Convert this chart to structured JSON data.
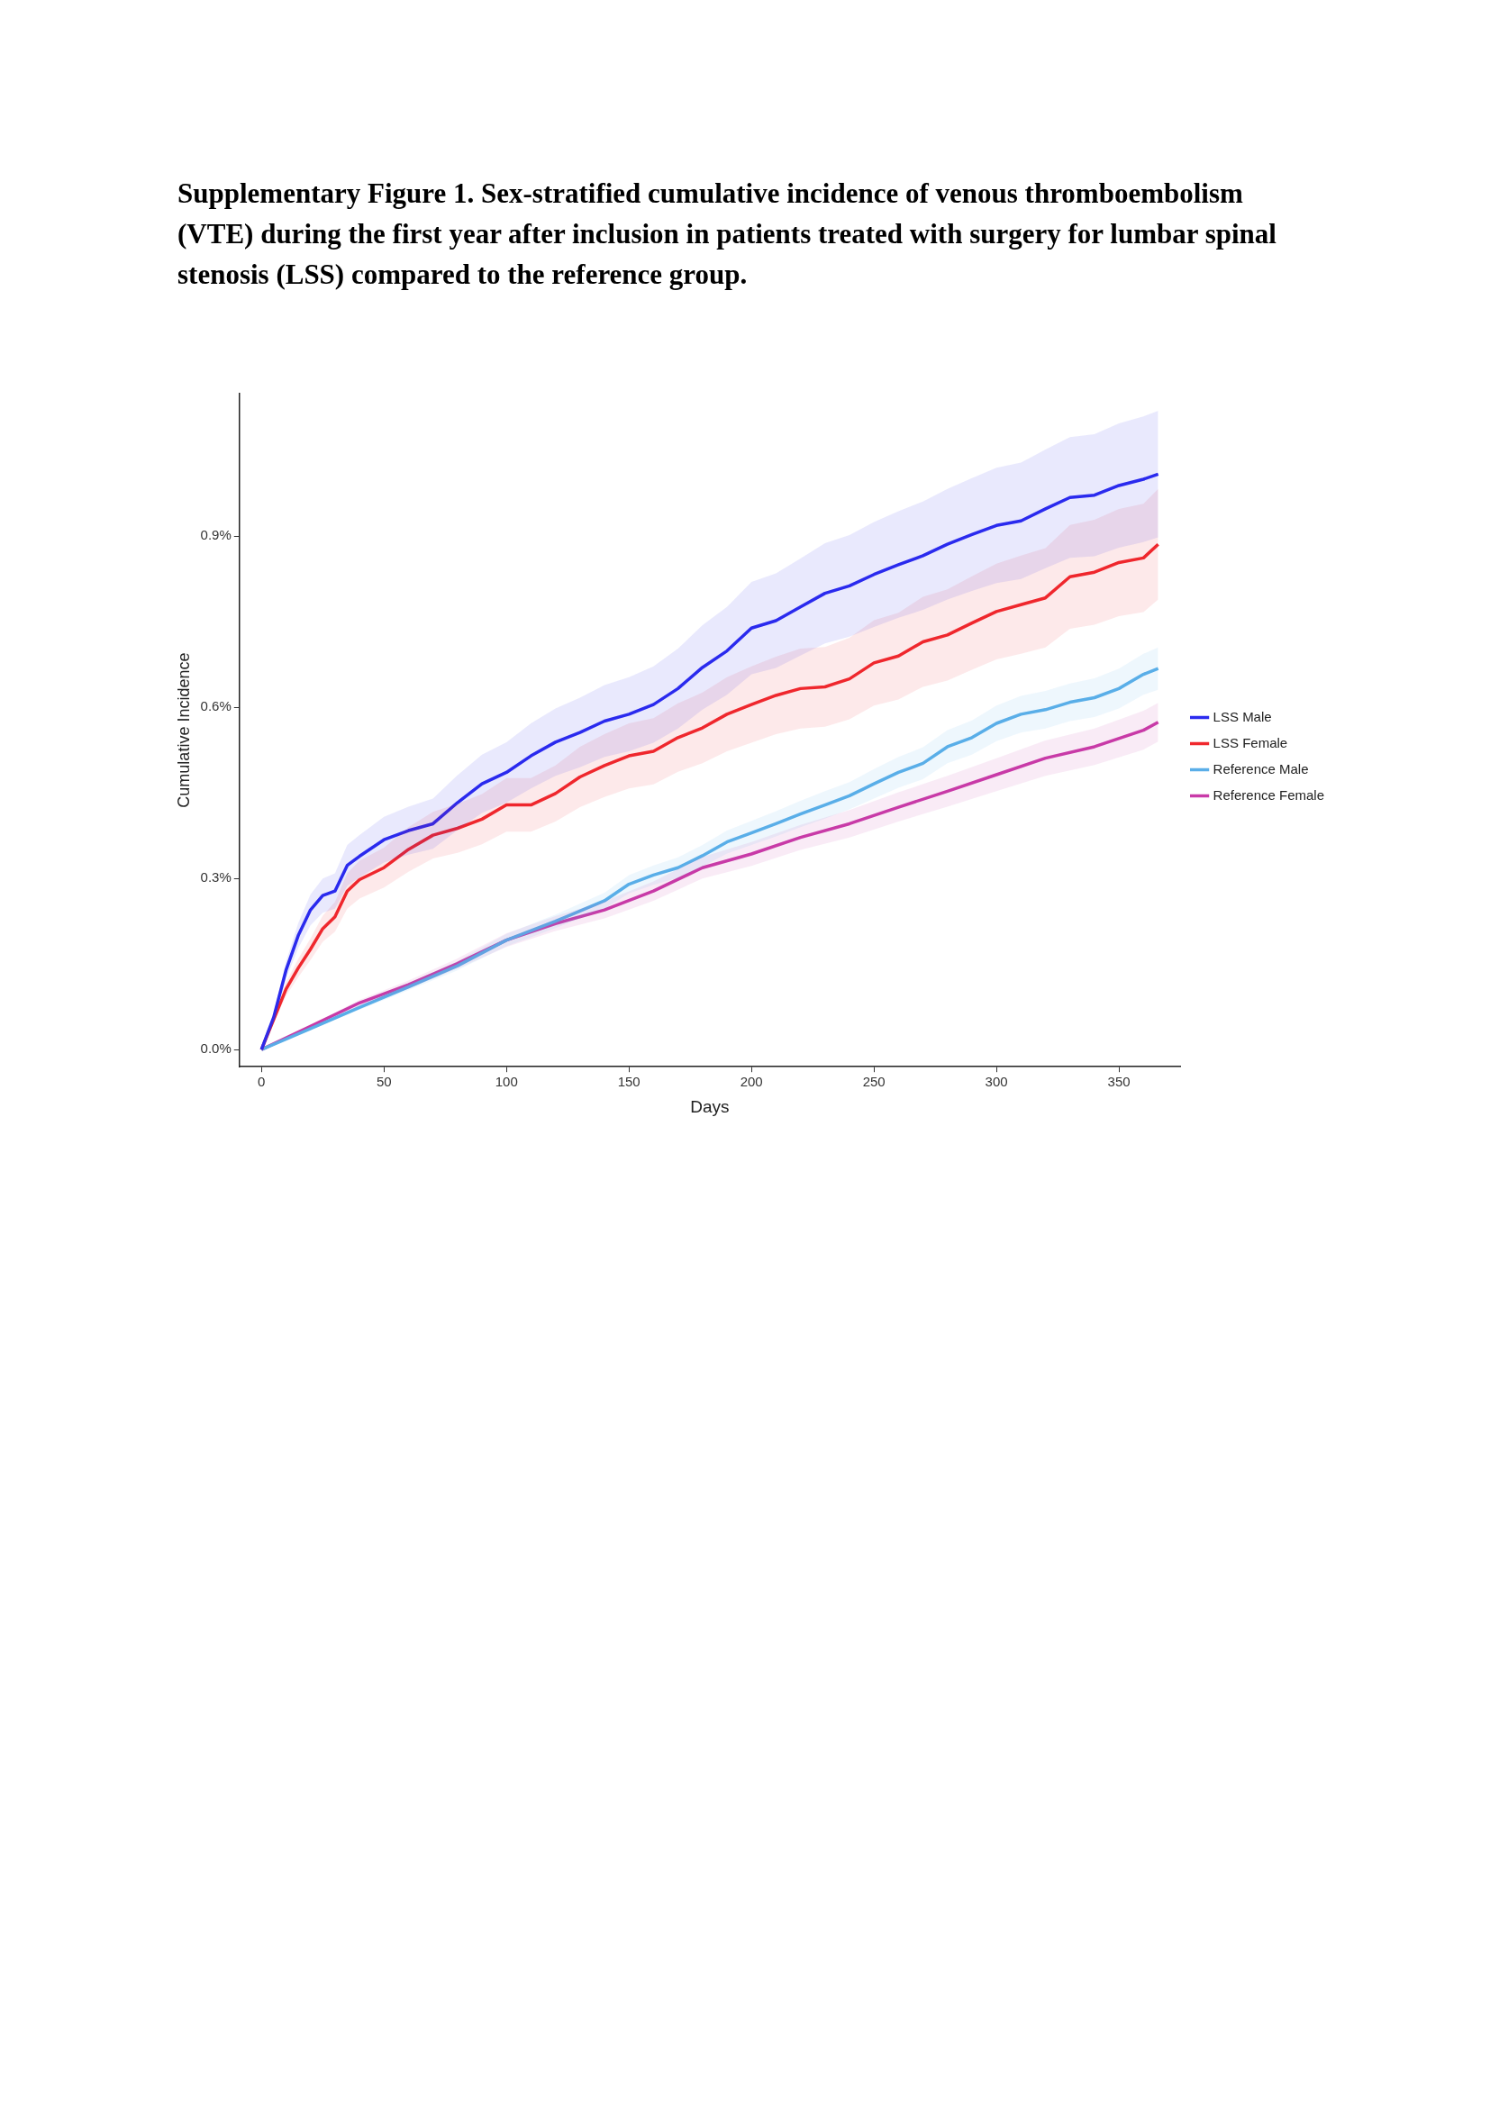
{
  "chart_data": {
    "type": "line",
    "title": "Supplementary Figure 1. Sex-stratified cumulative incidence of venous thromboembolism (VTE) during the first year after inclusion in patients treated with surgery for lumbar spinal stenosis (LSS) compared to the reference group.",
    "xlabel": "Days",
    "ylabel": "Cumulative Incidence",
    "xlim": [
      -9,
      375
    ],
    "ylim": [
      -0.03,
      1.15
    ],
    "xticks": [
      0,
      50,
      100,
      150,
      200,
      250,
      300,
      350
    ],
    "yticks": [
      {
        "value": 0,
        "label": "0.0%"
      },
      {
        "value": 0.3,
        "label": "0.3%"
      },
      {
        "value": 0.6,
        "label": "0.6%"
      },
      {
        "value": 0.9,
        "label": "0.9%"
      }
    ],
    "grid": false,
    "legend": "right",
    "marker": "none",
    "line_style": "solid",
    "series": [
      {
        "name": "LSS Male",
        "color": "#2b2bef",
        "x": [
          0,
          5,
          10,
          15,
          20,
          25,
          30,
          35,
          40,
          50,
          60,
          70,
          80,
          90,
          100,
          110,
          120,
          130,
          140,
          150,
          160,
          170,
          180,
          190,
          200,
          210,
          220,
          230,
          240,
          250,
          260,
          270,
          280,
          290,
          300,
          310,
          320,
          330,
          340,
          350,
          360,
          366
        ],
        "values": [
          0,
          0.057,
          0.139,
          0.2,
          0.245,
          0.27,
          0.278,
          0.323,
          0.339,
          0.368,
          0.384,
          0.396,
          0.433,
          0.466,
          0.486,
          0.515,
          0.539,
          0.556,
          0.576,
          0.588,
          0.605,
          0.633,
          0.67,
          0.699,
          0.739,
          0.752,
          0.776,
          0.8,
          0.813,
          0.833,
          0.85,
          0.866,
          0.886,
          0.903,
          0.919,
          0.927,
          0.948,
          0.968,
          0.972,
          0.989,
          1.0,
          1.009
        ],
        "lower": [
          0,
          0.051,
          0.124,
          0.178,
          0.218,
          0.24,
          0.247,
          0.287,
          0.302,
          0.328,
          0.342,
          0.352,
          0.385,
          0.415,
          0.433,
          0.458,
          0.48,
          0.495,
          0.513,
          0.523,
          0.538,
          0.563,
          0.596,
          0.622,
          0.658,
          0.669,
          0.691,
          0.712,
          0.724,
          0.741,
          0.757,
          0.771,
          0.789,
          0.804,
          0.818,
          0.825,
          0.844,
          0.862,
          0.865,
          0.88,
          0.89,
          0.898
        ],
        "upper": [
          0,
          0.063,
          0.154,
          0.222,
          0.272,
          0.3,
          0.309,
          0.359,
          0.376,
          0.408,
          0.426,
          0.44,
          0.481,
          0.517,
          0.539,
          0.572,
          0.598,
          0.617,
          0.639,
          0.653,
          0.672,
          0.703,
          0.744,
          0.776,
          0.82,
          0.835,
          0.861,
          0.888,
          0.902,
          0.925,
          0.944,
          0.961,
          0.983,
          1.002,
          1.02,
          1.029,
          1.052,
          1.074,
          1.079,
          1.098,
          1.11,
          1.12
        ]
      },
      {
        "name": "LSS Female",
        "color": "#f0282d",
        "x": [
          0,
          5,
          10,
          15,
          20,
          25,
          30,
          35,
          40,
          50,
          60,
          70,
          80,
          90,
          100,
          110,
          120,
          130,
          140,
          150,
          160,
          170,
          180,
          190,
          200,
          210,
          220,
          230,
          240,
          250,
          260,
          270,
          280,
          290,
          300,
          310,
          320,
          330,
          340,
          350,
          360,
          366
        ],
        "values": [
          0,
          0.053,
          0.106,
          0.143,
          0.176,
          0.212,
          0.233,
          0.278,
          0.298,
          0.319,
          0.351,
          0.376,
          0.388,
          0.404,
          0.429,
          0.429,
          0.449,
          0.478,
          0.498,
          0.515,
          0.523,
          0.547,
          0.564,
          0.588,
          0.605,
          0.621,
          0.633,
          0.636,
          0.65,
          0.678,
          0.69,
          0.715,
          0.727,
          0.748,
          0.768,
          0.78,
          0.792,
          0.829,
          0.837,
          0.854,
          0.862,
          0.886
        ],
        "lower": [
          0,
          0.047,
          0.094,
          0.127,
          0.157,
          0.189,
          0.207,
          0.247,
          0.265,
          0.284,
          0.312,
          0.335,
          0.345,
          0.36,
          0.382,
          0.382,
          0.4,
          0.425,
          0.443,
          0.458,
          0.465,
          0.487,
          0.502,
          0.523,
          0.538,
          0.553,
          0.563,
          0.566,
          0.579,
          0.603,
          0.614,
          0.636,
          0.647,
          0.666,
          0.684,
          0.694,
          0.705,
          0.738,
          0.745,
          0.76,
          0.767,
          0.789
        ],
        "upper": [
          0,
          0.059,
          0.118,
          0.159,
          0.195,
          0.235,
          0.259,
          0.309,
          0.331,
          0.354,
          0.39,
          0.417,
          0.431,
          0.448,
          0.476,
          0.476,
          0.498,
          0.531,
          0.553,
          0.572,
          0.581,
          0.607,
          0.626,
          0.653,
          0.672,
          0.689,
          0.703,
          0.706,
          0.722,
          0.753,
          0.766,
          0.794,
          0.807,
          0.83,
          0.852,
          0.866,
          0.879,
          0.92,
          0.929,
          0.948,
          0.957,
          0.983
        ]
      },
      {
        "name": "Reference Male",
        "color": "#5aaee8",
        "x": [
          0,
          20,
          40,
          60,
          80,
          100,
          120,
          140,
          150,
          160,
          170,
          180,
          190,
          200,
          210,
          220,
          230,
          240,
          250,
          260,
          270,
          280,
          290,
          300,
          310,
          320,
          330,
          340,
          350,
          360,
          366
        ],
        "values": [
          0,
          0.037,
          0.074,
          0.11,
          0.147,
          0.192,
          0.225,
          0.261,
          0.29,
          0.306,
          0.319,
          0.34,
          0.364,
          0.38,
          0.396,
          0.413,
          0.429,
          0.445,
          0.466,
          0.486,
          0.502,
          0.531,
          0.547,
          0.572,
          0.588,
          0.596,
          0.609,
          0.617,
          0.633,
          0.658,
          0.668
        ],
        "lower": [
          0,
          0.035,
          0.07,
          0.104,
          0.139,
          0.181,
          0.213,
          0.247,
          0.274,
          0.289,
          0.301,
          0.321,
          0.344,
          0.359,
          0.374,
          0.39,
          0.405,
          0.421,
          0.44,
          0.459,
          0.474,
          0.502,
          0.517,
          0.541,
          0.556,
          0.563,
          0.576,
          0.583,
          0.598,
          0.622,
          0.631
        ],
        "upper": [
          0,
          0.039,
          0.078,
          0.116,
          0.155,
          0.203,
          0.237,
          0.275,
          0.306,
          0.323,
          0.337,
          0.359,
          0.384,
          0.401,
          0.418,
          0.436,
          0.453,
          0.469,
          0.492,
          0.513,
          0.53,
          0.56,
          0.577,
          0.603,
          0.62,
          0.629,
          0.642,
          0.651,
          0.668,
          0.694,
          0.705
        ]
      },
      {
        "name": "Reference Female",
        "color": "#c93aa8",
        "x": [
          0,
          20,
          40,
          60,
          80,
          100,
          120,
          140,
          160,
          180,
          200,
          220,
          240,
          260,
          280,
          300,
          320,
          340,
          360,
          366
        ],
        "values": [
          0,
          0.041,
          0.082,
          0.114,
          0.151,
          0.192,
          0.221,
          0.245,
          0.278,
          0.319,
          0.343,
          0.372,
          0.396,
          0.425,
          0.453,
          0.482,
          0.511,
          0.531,
          0.56,
          0.574
        ],
        "lower": [
          0,
          0.039,
          0.077,
          0.107,
          0.142,
          0.18,
          0.208,
          0.23,
          0.261,
          0.3,
          0.322,
          0.35,
          0.372,
          0.4,
          0.426,
          0.453,
          0.48,
          0.499,
          0.526,
          0.54
        ],
        "upper": [
          0,
          0.043,
          0.087,
          0.121,
          0.16,
          0.204,
          0.234,
          0.26,
          0.295,
          0.338,
          0.364,
          0.394,
          0.42,
          0.451,
          0.48,
          0.511,
          0.542,
          0.563,
          0.594,
          0.608
        ]
      }
    ]
  }
}
